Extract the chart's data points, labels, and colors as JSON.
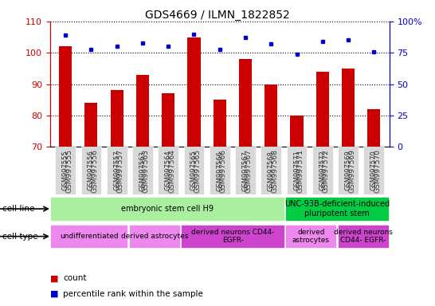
{
  "title": "GDS4669 / ILMN_1822852",
  "samples": [
    "GSM997555",
    "GSM997556",
    "GSM997557",
    "GSM997563",
    "GSM997564",
    "GSM997565",
    "GSM997566",
    "GSM997567",
    "GSM997568",
    "GSM997571",
    "GSM997572",
    "GSM997569",
    "GSM997570"
  ],
  "counts": [
    102,
    84,
    88,
    93,
    87,
    105,
    85,
    98,
    90,
    80,
    94,
    95,
    82
  ],
  "percentile_ranks": [
    89,
    78,
    80,
    83,
    80,
    90,
    78,
    87,
    82,
    74,
    84,
    85,
    76
  ],
  "ylim_left": [
    70,
    110
  ],
  "ylim_right": [
    0,
    100
  ],
  "yticks_left": [
    70,
    80,
    90,
    100,
    110
  ],
  "yticks_right": [
    0,
    25,
    50,
    75,
    100
  ],
  "ytick_labels_right": [
    "0",
    "25",
    "50",
    "75",
    "100%"
  ],
  "bar_color": "#cc0000",
  "dot_color": "#0000cc",
  "bar_bottom": 70,
  "grid_color": "#000000",
  "cell_line_groups": [
    {
      "label": "embryonic stem cell H9",
      "start": 0,
      "end": 9,
      "color": "#aaeea0"
    },
    {
      "label": "UNC-93B-deficient-induced\npluripotent stem",
      "start": 9,
      "end": 13,
      "color": "#00cc44"
    }
  ],
  "cell_type_groups": [
    {
      "label": "undifferentiated",
      "start": 0,
      "end": 3,
      "color": "#ee88ee"
    },
    {
      "label": "derived astrocytes",
      "start": 3,
      "end": 5,
      "color": "#ee88ee"
    },
    {
      "label": "derived neurons CD44-\nEGFR-",
      "start": 5,
      "end": 9,
      "color": "#cc44cc"
    },
    {
      "label": "derived\nastrocytes",
      "start": 9,
      "end": 11,
      "color": "#ee88ee"
    },
    {
      "label": "derived neurons\nCD44- EGFR-",
      "start": 11,
      "end": 13,
      "color": "#cc44cc"
    }
  ],
  "left_axis_color": "#cc0000",
  "right_axis_color": "#0000cc",
  "plot_bgcolor": "#ffffff",
  "fig_width": 5.46,
  "fig_height": 3.84,
  "dpi": 100
}
